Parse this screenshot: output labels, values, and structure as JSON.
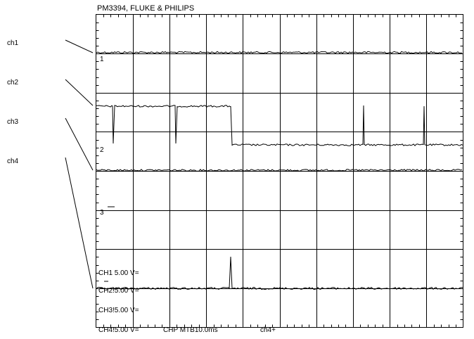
{
  "header": {
    "title": "PM3394, FLUKE & PHILIPS"
  },
  "channel_labels": [
    "ch1",
    "ch2",
    "ch3",
    "ch4"
  ],
  "trace_markers": [
    "1",
    "2",
    "3"
  ],
  "settings": {
    "ch1": "CH1 5.00 V=",
    "ch2": "CH2!5.00 V=",
    "ch3": "CH3!5.00 V=",
    "ch4": "CH4!5.00 V=",
    "timebase": "CHP MTB10.0ms",
    "trigger": "ch4+"
  },
  "grid": {
    "divisions_x": 10,
    "divisions_y": 8
  },
  "colors": {
    "trace": "#000000",
    "grid": "#000000",
    "background": "#ffffff"
  }
}
